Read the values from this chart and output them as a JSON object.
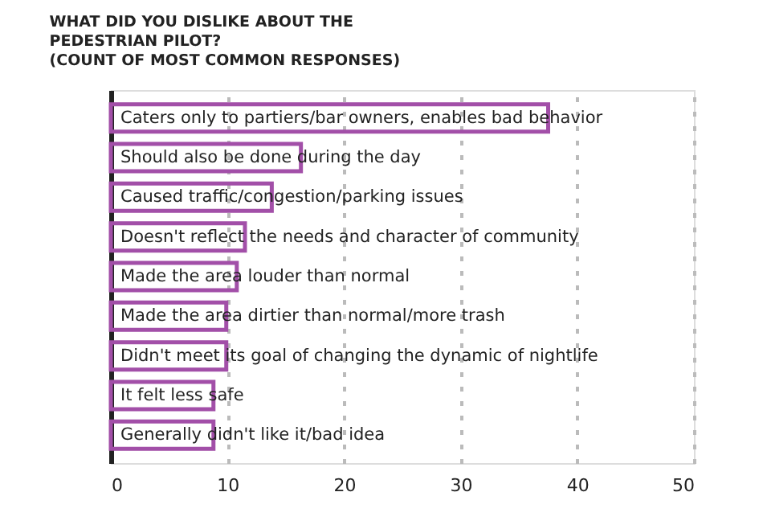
{
  "chart_data": {
    "type": "bar",
    "orientation": "horizontal",
    "title": "WHAT DID YOU DISLIKE ABOUT THE\nPEDESTRIAN PILOT?\n(COUNT OF MOST COMMON RESPONSES)",
    "categories": [
      "Caters only to partiers/bar owners, enables bad behavior",
      "Should also be done during the day",
      "Caused traffic/congestion/parking issues",
      "Doesn't reflect the needs and character of community",
      "Made the area louder than normal",
      "Made the area dirtier than normal/more trash",
      "Didn't meet its goal of changing the dynamic of nightlife",
      "It felt less safe",
      "Generally didn't like it/bad idea"
    ],
    "values": [
      37.5,
      16.3,
      13.8,
      11.5,
      10.8,
      9.9,
      9.9,
      8.8,
      8.8
    ],
    "color": "#a24fa8",
    "xlim": [
      0,
      50
    ],
    "xticks": [
      0,
      10,
      20,
      30,
      40,
      50
    ],
    "grid": "x",
    "tick_labels": "x"
  }
}
